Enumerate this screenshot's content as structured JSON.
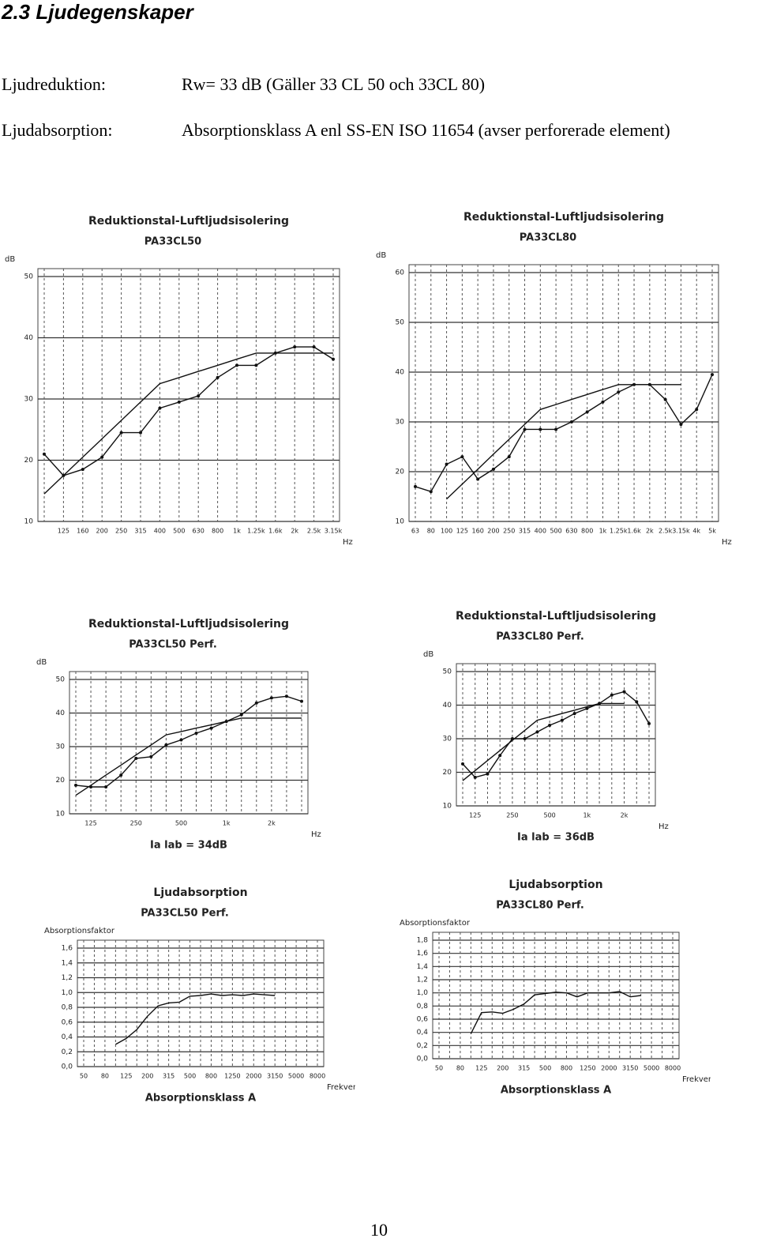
{
  "header": {
    "title": "2.3 Ljudegenskaper"
  },
  "properties": [
    {
      "label": "Ljudreduktion:",
      "value": "Rw= 33 dB   (Gäller 33 CL 50 och 33CL 80)"
    },
    {
      "label": "Ljudabsorption:",
      "value": "Absorptionsklass A enl SS-EN ISO 11654 (avser perforerade element)"
    }
  ],
  "charts": [
    {
      "type": "line",
      "title": "Reduktionstal-Luftljudsisolering",
      "subtitle": "PA33CL50",
      "y_label": "dB",
      "x_label": "Hz",
      "categories": [
        null,
        "125",
        "160",
        "200",
        "250",
        "315",
        "400",
        "500",
        "630",
        "800",
        "1k",
        "1.25k",
        "1.6k",
        "2k",
        "2.5k",
        "3.15k"
      ],
      "ylim": [
        10,
        50
      ],
      "yticks": [
        10,
        20,
        30,
        40,
        50
      ],
      "grid": true,
      "series": [
        {
          "color": "#111111",
          "markers": true,
          "values": [
            21,
            17.5,
            18.5,
            20.5,
            24.5,
            24.5,
            28.5,
            29.5,
            30.5,
            33.5,
            35.5,
            35.5,
            37.5,
            38.5,
            38.5,
            36.5
          ]
        },
        {
          "color": "#111111",
          "markers": false,
          "values": [
            14.5,
            17.5,
            20.5,
            23.5,
            26.5,
            29.5,
            32.5,
            33.5,
            34.5,
            35.5,
            36.5,
            37.5,
            37.5,
            37.5,
            37.5,
            37.5
          ]
        }
      ]
    },
    {
      "type": "line",
      "title": "Reduktionstal-Luftljudsisolering",
      "subtitle": "PA33CL80",
      "y_label": "dB",
      "x_label": "Hz",
      "categories": [
        "63",
        "80",
        "100",
        "125",
        "160",
        "200",
        "250",
        "315",
        "400",
        "500",
        "630",
        "800",
        "1k",
        "1.25k",
        "1.6k",
        "2k",
        "2.5k",
        "3.15k",
        "4k",
        "5k"
      ],
      "ylim": [
        10,
        60
      ],
      "yticks": [
        10,
        20,
        30,
        40,
        50,
        60
      ],
      "grid": true,
      "series": [
        {
          "color": "#111111",
          "markers": true,
          "values": [
            17,
            16,
            21.5,
            23,
            18.5,
            20.5,
            23,
            28.5,
            28.5,
            28.5,
            30,
            32,
            34,
            36,
            37.5,
            37.5,
            34.5,
            29.5,
            32.5,
            39.5
          ]
        },
        {
          "color": "#111111",
          "markers": false,
          "values": [
            null,
            null,
            14.5,
            17.5,
            20.5,
            23.5,
            26.5,
            29.5,
            32.5,
            33.5,
            34.5,
            35.5,
            36.5,
            37.5,
            37.5,
            37.5,
            37.5,
            37.5,
            null,
            null
          ]
        }
      ]
    },
    {
      "type": "line",
      "title": "Reduktionstal-Luftljudsisolering",
      "subtitle": "PA33CL50  Perf.",
      "y_label": "dB",
      "x_label": "Hz",
      "note": "Ia lab = 34dB",
      "categories": [
        null,
        "125",
        null,
        null,
        "250",
        null,
        null,
        "500",
        null,
        null,
        "1k",
        null,
        null,
        "2k",
        null,
        null
      ],
      "ylim": [
        10,
        50
      ],
      "yticks": [
        10,
        20,
        30,
        40,
        50
      ],
      "grid": true,
      "series": [
        {
          "color": "#111111",
          "markers": true,
          "values": [
            18.5,
            18,
            18,
            21.5,
            26.5,
            27,
            30.5,
            32,
            34,
            35.5,
            37.5,
            39.5,
            43,
            44.5,
            45,
            43.5
          ]
        },
        {
          "color": "#111111",
          "markers": false,
          "values": [
            15.5,
            18.5,
            21.5,
            24.5,
            27.5,
            30.5,
            33.5,
            34.5,
            35.5,
            36.5,
            37.5,
            38.5,
            38.5,
            38.5,
            38.5,
            38.5
          ]
        }
      ]
    },
    {
      "type": "line",
      "title": "Reduktionstal-Luftljudsisolering",
      "subtitle": "PA33CL80  Perf.",
      "y_label": "dB",
      "x_label": "Hz",
      "note": "Ia lab = 36dB",
      "categories": [
        null,
        "125",
        null,
        null,
        "250",
        null,
        null,
        "500",
        null,
        null,
        "1k",
        null,
        null,
        "2k",
        null,
        null
      ],
      "ylim": [
        10,
        50
      ],
      "yticks": [
        10,
        20,
        30,
        40,
        50
      ],
      "grid": true,
      "series": [
        {
          "color": "#111111",
          "markers": true,
          "values": [
            22.5,
            18.5,
            19.5,
            25,
            30,
            30,
            32,
            34,
            35.5,
            37.5,
            39,
            40.5,
            43,
            44,
            41,
            34.5
          ]
        },
        {
          "color": "#111111",
          "markers": false,
          "values": [
            17.5,
            20.5,
            23.5,
            26.5,
            29.5,
            32.5,
            35.5,
            36.5,
            37.5,
            38.5,
            39.5,
            40.5,
            40.5,
            40.5,
            null,
            null
          ]
        }
      ]
    },
    {
      "type": "line",
      "title": "Ljudabsorption",
      "subtitle": "PA33CL50  Perf.",
      "y_label": "Absorptionsfaktor",
      "x_label": "Frekvens, Hz.",
      "note": "Absorptionsklass A",
      "categories": [
        "50",
        null,
        "80",
        null,
        "125",
        null,
        "200",
        null,
        "315",
        null,
        "500",
        null,
        "800",
        null,
        "1250",
        null,
        "2000",
        null,
        "3150",
        null,
        "5000",
        null,
        "8000"
      ],
      "ylim": [
        0,
        1.6
      ],
      "yticks": [
        {
          "value": 0,
          "label": "0,0"
        },
        {
          "value": 0.2,
          "label": "0,2"
        },
        {
          "value": 0.4,
          "label": "0,4"
        },
        {
          "value": 0.6,
          "label": "0,6"
        },
        {
          "value": 0.8,
          "label": "0,8"
        },
        {
          "value": 1.0,
          "label": "1,0"
        },
        {
          "value": 1.2,
          "label": "1,2"
        },
        {
          "value": 1.4,
          "label": "1,4"
        },
        {
          "value": 1.6,
          "label": "1,6"
        }
      ],
      "grid": true,
      "series": [
        {
          "color": "#111111",
          "markers": false,
          "values": [
            null,
            null,
            null,
            0.3,
            0.38,
            0.5,
            0.68,
            0.82,
            0.86,
            0.87,
            0.95,
            0.96,
            0.98,
            0.96,
            0.97,
            0.96,
            0.98,
            0.97,
            0.96,
            null,
            null,
            null,
            null
          ]
        }
      ]
    },
    {
      "type": "line",
      "title": "Ljudabsorption",
      "subtitle": "PA33CL80  Perf.",
      "y_label": "Absorptionsfaktor",
      "x_label": "Frekvens, Hz.",
      "note": "Absorptionsklass A",
      "categories": [
        "50",
        null,
        "80",
        null,
        "125",
        null,
        "200",
        null,
        "315",
        null,
        "500",
        null,
        "800",
        null,
        "1250",
        null,
        "2000",
        null,
        "3150",
        null,
        "5000",
        null,
        "8000"
      ],
      "ylim": [
        0,
        1.8
      ],
      "yticks": [
        {
          "value": 0,
          "label": "0,0"
        },
        {
          "value": 0.2,
          "label": "0,2"
        },
        {
          "value": 0.4,
          "label": "0,4"
        },
        {
          "value": 0.6,
          "label": "0,6"
        },
        {
          "value": 0.8,
          "label": "0,8"
        },
        {
          "value": 1.0,
          "label": "1,0"
        },
        {
          "value": 1.2,
          "label": "1,2"
        },
        {
          "value": 1.4,
          "label": "1,4"
        },
        {
          "value": 1.6,
          "label": "1,6"
        },
        {
          "value": 1.8,
          "label": "1,8"
        }
      ],
      "grid": true,
      "series": [
        {
          "color": "#111111",
          "markers": false,
          "values": [
            null,
            null,
            null,
            0.38,
            0.7,
            0.71,
            0.69,
            0.75,
            0.83,
            0.97,
            0.99,
            1.01,
            1.0,
            0.94,
            1.0,
            1.0,
            1.0,
            1.02,
            0.94,
            0.96,
            null,
            null,
            null
          ]
        }
      ]
    }
  ],
  "page_number": "10"
}
